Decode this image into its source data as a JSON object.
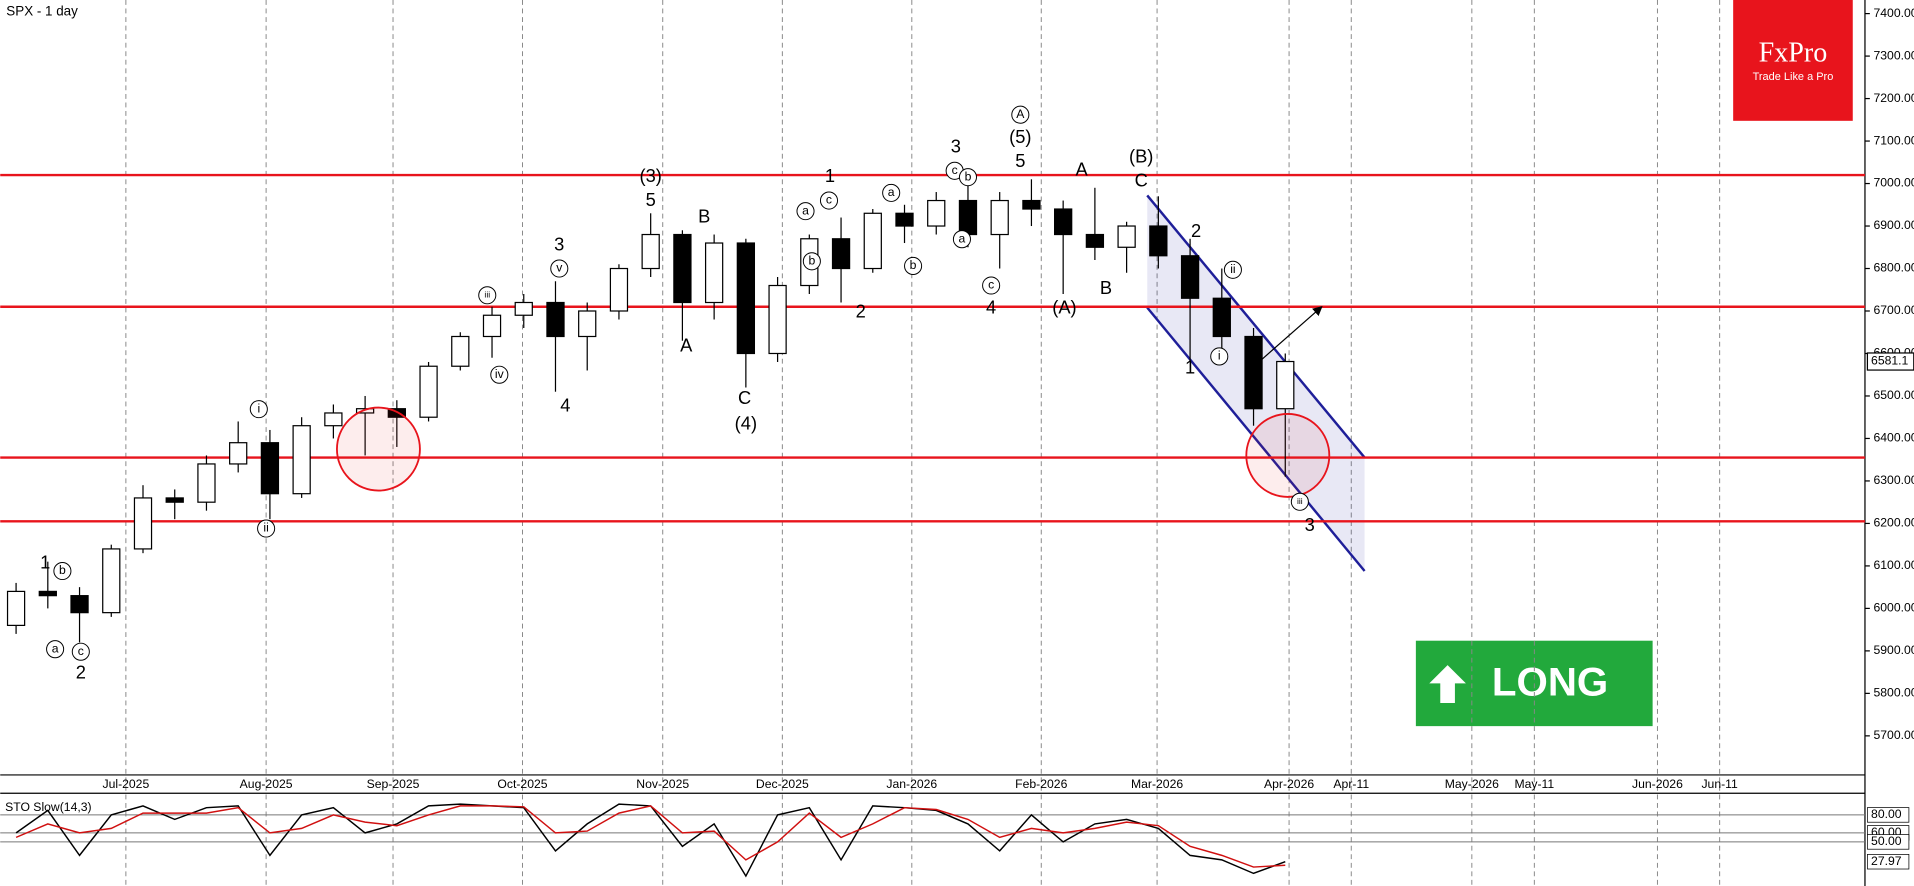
{
  "chart_data": [
    {
      "type": "candlestick",
      "title": "SPX - 1 day",
      "open": [
        5960,
        6040,
        6030,
        5990,
        6140,
        6260,
        6250,
        6340,
        6390,
        6270,
        6430,
        6460,
        6470,
        6450,
        6570,
        6640,
        6690,
        6720,
        6640,
        6700,
        6800,
        6880,
        6720,
        6860,
        6600,
        6760,
        6870,
        6800,
        6930,
        6900,
        6960,
        6880,
        6960,
        6940,
        6880,
        6850,
        6900,
        6830,
        6730,
        6640,
        6470
      ],
      "high": [
        6060,
        6110,
        6050,
        6150,
        6290,
        6280,
        6360,
        6440,
        6420,
        6450,
        6480,
        6500,
        6490,
        6580,
        6650,
        6710,
        6740,
        6770,
        6720,
        6810,
        6930,
        6890,
        6880,
        6870,
        6780,
        6880,
        6920,
        6940,
        6950,
        6980,
        7000,
        6980,
        7010,
        6960,
        6990,
        6910,
        6970,
        6870,
        6800,
        6660,
        6600
      ],
      "low": [
        5940,
        6000,
        5920,
        5980,
        6130,
        6210,
        6230,
        6320,
        6210,
        6260,
        6400,
        6360,
        6380,
        6440,
        6560,
        6590,
        6660,
        6510,
        6560,
        6680,
        6780,
        6630,
        6680,
        6520,
        6580,
        6740,
        6720,
        6790,
        6860,
        6880,
        6850,
        6800,
        6900,
        6740,
        6820,
        6790,
        6800,
        6580,
        6600,
        6430,
        6310
      ],
      "close": [
        6040,
        6030,
        5990,
        6140,
        6260,
        6250,
        6340,
        6390,
        6270,
        6430,
        6460,
        6470,
        6450,
        6570,
        6640,
        6690,
        6720,
        6640,
        6700,
        6800,
        6880,
        6720,
        6860,
        6600,
        6760,
        6870,
        6800,
        6930,
        6900,
        6960,
        6880,
        6960,
        6940,
        6880,
        6850,
        6900,
        6830,
        6730,
        6640,
        6470,
        6581.1
      ],
      "xlim": [
        0,
        58.77
      ],
      "ylim": [
        5608,
        7432
      ],
      "xticks": [
        {
          "value": 3.96,
          "label": "Jul-2025"
        },
        {
          "value": 8.38,
          "label": "Aug-2025"
        },
        {
          "value": 12.38,
          "label": "Sep-2025"
        },
        {
          "value": 16.46,
          "label": "Oct-2025"
        },
        {
          "value": 20.88,
          "label": "Nov-2025"
        },
        {
          "value": 24.65,
          "label": "Dec-2025"
        },
        {
          "value": 28.73,
          "label": "Jan-2026"
        },
        {
          "value": 32.81,
          "label": "Feb-2026"
        },
        {
          "value": 36.46,
          "label": "Mar-2026"
        },
        {
          "value": 40.62,
          "label": "Apr-2026"
        },
        {
          "value": 42.58,
          "label": "Apr-11"
        },
        {
          "value": 46.38,
          "label": "May-2026"
        },
        {
          "value": 48.35,
          "label": "May-11"
        },
        {
          "value": 52.23,
          "label": "Jun-2026"
        },
        {
          "value": 54.19,
          "label": "Jun-11"
        }
      ],
      "yticks": [
        {
          "value": 5700,
          "label": "5700.00"
        },
        {
          "value": 5800,
          "label": "5800.00"
        },
        {
          "value": 5900,
          "label": "5900.00"
        },
        {
          "value": 6000,
          "label": "6000.00"
        },
        {
          "value": 6100,
          "label": "6100.00"
        },
        {
          "value": 6200,
          "label": "6200.00"
        },
        {
          "value": 6300,
          "label": "6300.00"
        },
        {
          "value": 6400,
          "label": "6400.00"
        },
        {
          "value": 6500,
          "label": "6500.00"
        },
        {
          "value": 6600,
          "label": "6600.00"
        },
        {
          "value": 6700,
          "label": "6700.00"
        },
        {
          "value": 6800,
          "label": "6800.00"
        },
        {
          "value": 6900,
          "label": "6900.00"
        },
        {
          "value": 7000,
          "label": "7000.00"
        },
        {
          "value": 7100,
          "label": "7100.00"
        },
        {
          "value": 7200,
          "label": "7200.00"
        },
        {
          "value": 7300,
          "label": "7300.00"
        },
        {
          "value": 7400,
          "label": "7400.00"
        }
      ],
      "grid": "x",
      "levels": {
        "color": "#e8141c",
        "values": [
          7020,
          6710,
          6355,
          6205
        ]
      },
      "last_price": 6581.1,
      "annotations": [
        {
          "text": "1",
          "x": 1.42,
          "y": 6105
        },
        {
          "text": "b",
          "x": 1.96,
          "y": 6088,
          "circled": true
        },
        {
          "text": "a",
          "x": 1.73,
          "y": 5904,
          "circled": true
        },
        {
          "text": "c",
          "x": 2.54,
          "y": 5898,
          "circled": true
        },
        {
          "text": "2",
          "x": 2.54,
          "y": 5846
        },
        {
          "text": "i",
          "x": 8.15,
          "y": 6469,
          "circled": true
        },
        {
          "text": "ii",
          "x": 8.38,
          "y": 6188,
          "circled": true
        },
        {
          "text": "iii",
          "x": 15.35,
          "y": 6737,
          "circled": true
        },
        {
          "text": "iv",
          "x": 15.73,
          "y": 6550,
          "circled": true
        },
        {
          "text": "v",
          "x": 17.62,
          "y": 6800,
          "circled": true
        },
        {
          "text": "3",
          "x": 17.62,
          "y": 6854
        },
        {
          "text": "4",
          "x": 17.81,
          "y": 6475
        },
        {
          "text": "(3)",
          "x": 20.5,
          "y": 7015
        },
        {
          "text": "5",
          "x": 20.5,
          "y": 6958
        },
        {
          "text": "B",
          "x": 22.19,
          "y": 6920
        },
        {
          "text": "A",
          "x": 21.62,
          "y": 6616
        },
        {
          "text": "C",
          "x": 23.46,
          "y": 6492
        },
        {
          "text": "(4)",
          "x": 23.5,
          "y": 6432
        },
        {
          "text": "2",
          "x": 27.12,
          "y": 6696
        },
        {
          "text": "1",
          "x": 26.15,
          "y": 7015
        },
        {
          "text": "c",
          "x": 26.12,
          "y": 6960,
          "circled": true
        },
        {
          "text": "a",
          "x": 25.38,
          "y": 6935,
          "circled": true
        },
        {
          "text": "b",
          "x": 25.58,
          "y": 6817,
          "circled": true
        },
        {
          "text": "a",
          "x": 28.08,
          "y": 6978,
          "circled": true
        },
        {
          "text": "b",
          "x": 28.77,
          "y": 6806,
          "circled": true
        },
        {
          "text": "3",
          "x": 30.12,
          "y": 7084
        },
        {
          "text": "c",
          "x": 30.08,
          "y": 7030,
          "circled": true
        },
        {
          "text": "b",
          "x": 30.5,
          "y": 7015,
          "circled": true
        },
        {
          "text": "a",
          "x": 30.31,
          "y": 6869,
          "circled": true
        },
        {
          "text": "c",
          "x": 31.23,
          "y": 6760,
          "circled": true
        },
        {
          "text": "4",
          "x": 31.23,
          "y": 6705
        },
        {
          "text": "A",
          "x": 32.15,
          "y": 7162,
          "circled": true
        },
        {
          "text": "(5)",
          "x": 32.15,
          "y": 7107
        },
        {
          "text": "5",
          "x": 32.15,
          "y": 7050
        },
        {
          "text": "A",
          "x": 34.08,
          "y": 7030
        },
        {
          "text": "B",
          "x": 34.85,
          "y": 6751
        },
        {
          "text": "(A)",
          "x": 33.54,
          "y": 6705
        },
        {
          "text": "(B)",
          "x": 35.96,
          "y": 7061
        },
        {
          "text": "C",
          "x": 35.96,
          "y": 7004
        },
        {
          "text": "2",
          "x": 37.69,
          "y": 6886
        },
        {
          "text": "ii",
          "x": 38.85,
          "y": 6797,
          "circled": true
        },
        {
          "text": "1",
          "x": 37.5,
          "y": 6564
        },
        {
          "text": "i",
          "x": 38.42,
          "y": 6593,
          "circled": true
        },
        {
          "text": "iii",
          "x": 40.96,
          "y": 6251,
          "circled": true
        },
        {
          "text": "3",
          "x": 41.27,
          "y": 6194
        }
      ],
      "channel": {
        "color": "#1f1f99",
        "upper": {
          "x": [
            36.15,
            43.0
          ],
          "y": [
            6972,
            6355
          ]
        },
        "lower": {
          "x": [
            36.15,
            43.0
          ],
          "y": [
            6708,
            6088
          ]
        }
      },
      "arrow": {
        "x": [
          39.73,
          41.62
        ],
        "y": [
          6584,
          6708
        ]
      },
      "circles": {
        "color": "#e8141c",
        "x": [
          11.92,
          40.58
        ],
        "y": [
          6375,
          6360
        ]
      }
    },
    {
      "type": "line",
      "title": "STO Slow(14,3)",
      "xlim": [
        0,
        58.77
      ],
      "ylim": [
        0,
        100
      ],
      "yticks": [
        {
          "value": 80,
          "label": "80.00"
        },
        {
          "value": 60,
          "label": "60.00"
        },
        {
          "value": 50,
          "label": "50.00"
        }
      ],
      "series": [
        {
          "color": "#000000",
          "values": [
            60,
            85,
            35,
            80,
            90,
            75,
            88,
            90,
            35,
            80,
            88,
            60,
            70,
            90,
            92,
            90,
            88,
            40,
            70,
            92,
            90,
            45,
            70,
            12,
            80,
            88,
            30,
            90,
            88,
            85,
            70,
            40,
            80,
            50,
            70,
            75,
            65,
            35,
            30,
            15,
            27.97
          ]
        },
        {
          "color": "#d01010",
          "values": [
            55,
            70,
            60,
            65,
            82,
            82,
            82,
            88,
            60,
            65,
            80,
            72,
            68,
            80,
            90,
            90,
            89,
            60,
            62,
            82,
            90,
            60,
            62,
            30,
            50,
            82,
            55,
            70,
            88,
            86,
            75,
            55,
            65,
            60,
            65,
            72,
            68,
            45,
            35,
            22,
            24
          ]
        }
      ]
    }
  ],
  "logo": {
    "title": "FxPro",
    "tagline": "Trade Like a Pro"
  },
  "signal": {
    "label": "LONG"
  }
}
